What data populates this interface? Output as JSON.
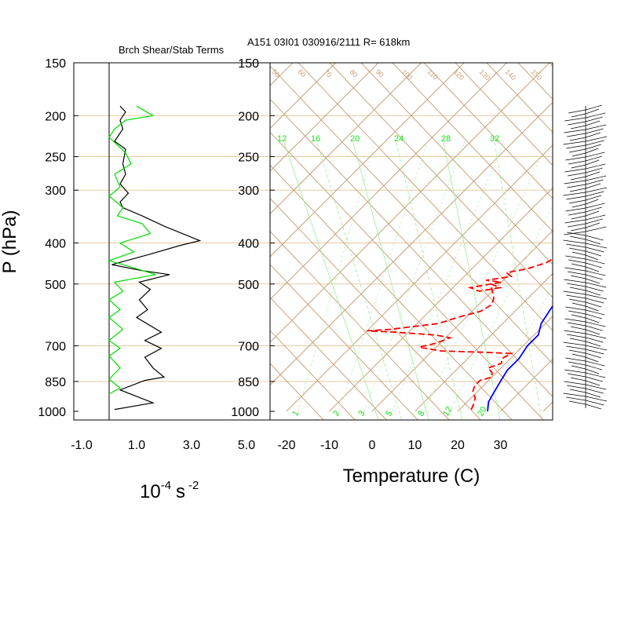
{
  "titles": {
    "left": "Brch Shear/Stab Terms",
    "right": "A151 03I01 030916/2111 R= 618km"
  },
  "labels": {
    "y": "P (hPa)",
    "x_right": "Temperature (C)",
    "x_left_base": "10",
    "x_left_exp": "-4",
    "x_left_unit": "s",
    "x_left_unit_exp": "-2"
  },
  "colors": {
    "temperature": "#0000ff",
    "dewpoint": "#ff0000",
    "shear_term": "#000000",
    "stab_term": "#00dd00",
    "skewt_lines": "#c8a27a",
    "mixing_lines": "#19e019"
  },
  "chart_data": [
    {
      "type": "line",
      "ylabel": "P (hPa)",
      "yscale": "log",
      "ylim": [
        1000,
        150
      ],
      "xlim": [
        -1.0,
        5.0
      ],
      "x_ticks": [
        "-1.0",
        "1.0",
        "3.0",
        "5.0"
      ],
      "y_ticks": [
        "150",
        "200",
        "250",
        "300",
        "400",
        "500",
        "700",
        "850",
        "1000"
      ],
      "y_tick_values": [
        150,
        200,
        250,
        300,
        400,
        500,
        700,
        850,
        1000
      ],
      "series": [
        {
          "points": [
            [
              0.4,
              190
            ],
            [
              0.6,
              196
            ],
            [
              0.4,
              205
            ],
            [
              0.5,
              215
            ],
            [
              0.2,
              230
            ],
            [
              0.6,
              240
            ],
            [
              0.5,
              260
            ],
            [
              0.6,
              275
            ],
            [
              0.4,
              290
            ],
            [
              0.7,
              305
            ],
            [
              0.4,
              320
            ],
            [
              0.5,
              330
            ],
            [
              1.2,
              345
            ],
            [
              2.0,
              365
            ],
            [
              3.3,
              395
            ],
            [
              2.6,
              405
            ],
            [
              1.5,
              425
            ],
            [
              0.1,
              450
            ],
            [
              1.2,
              465
            ],
            [
              2.2,
              475
            ],
            [
              1.1,
              495
            ],
            [
              1.5,
              515
            ],
            [
              1.1,
              545
            ],
            [
              1.4,
              575
            ],
            [
              1.0,
              600
            ],
            [
              1.9,
              650
            ],
            [
              1.3,
              680
            ],
            [
              1.9,
              710
            ],
            [
              1.3,
              745
            ],
            [
              1.6,
              790
            ],
            [
              2.0,
              830
            ],
            [
              1.3,
              845
            ],
            [
              0.4,
              890
            ],
            [
              1.6,
              955
            ],
            [
              0.2,
              990
            ]
          ]
        },
        {
          "points": [
            [
              1.0,
              190
            ],
            [
              1.6,
              200
            ],
            [
              0.6,
              205
            ],
            [
              0.2,
              215
            ],
            [
              0.0,
              225
            ],
            [
              0.6,
              245
            ],
            [
              0.8,
              260
            ],
            [
              0.2,
              275
            ],
            [
              0.4,
              295
            ],
            [
              0.0,
              310
            ],
            [
              0.5,
              330
            ],
            [
              0.3,
              345
            ],
            [
              1.2,
              360
            ],
            [
              1.5,
              380
            ],
            [
              0.4,
              400
            ],
            [
              0.9,
              420
            ],
            [
              0.0,
              440
            ],
            [
              1.0,
              460
            ],
            [
              1.7,
              475
            ],
            [
              0.2,
              495
            ],
            [
              0.5,
              520
            ],
            [
              0.0,
              545
            ],
            [
              0.4,
              575
            ],
            [
              0.0,
              600
            ],
            [
              0.5,
              640
            ],
            [
              0.0,
              680
            ],
            [
              0.4,
              710
            ],
            [
              0.0,
              740
            ],
            [
              0.4,
              790
            ],
            [
              0.0,
              840
            ],
            [
              0.4,
              880
            ],
            [
              0.0,
              910
            ]
          ]
        }
      ]
    },
    {
      "type": "line",
      "xlabel": "Temperature (C)",
      "yscale": "log",
      "ylim": [
        1000,
        150
      ],
      "xlim": [
        -23,
        41
      ],
      "x_ticks": [
        "-20",
        "-10",
        "0",
        "10",
        "20",
        "30"
      ],
      "x_tick_values": [
        -20,
        -10,
        0,
        10,
        20,
        30
      ],
      "y_ticks": [
        "150",
        "200",
        "250",
        "300",
        "400",
        "500",
        "700",
        "850",
        "1000"
      ],
      "grid": true,
      "mixing_ratio_labels": [
        "12",
        "16",
        "20",
        "24",
        "28",
        "32"
      ],
      "mixing_ratio_bottom_labels": [
        "1",
        "2",
        "3",
        "5",
        "8",
        "12",
        "20"
      ],
      "isotherm_labels": [
        "50",
        "60",
        "70",
        "80",
        "90",
        "100",
        "110",
        "120",
        "130",
        "140",
        "150"
      ],
      "series": [
        {
          "points": [
            [
              -2.5,
              180
            ],
            [
              0,
              200
            ],
            [
              3,
              220
            ],
            [
              5,
              240
            ],
            [
              7,
              260
            ],
            [
              9,
              285
            ],
            [
              10,
              300
            ],
            [
              11,
              320
            ],
            [
              12,
              340
            ],
            [
              13,
              360
            ],
            [
              13,
              380
            ],
            [
              12,
              395
            ],
            [
              12,
              410
            ],
            [
              13,
              430
            ],
            [
              14,
              450
            ],
            [
              15,
              475
            ],
            [
              16,
              500
            ],
            [
              17,
              540
            ],
            [
              18,
              580
            ],
            [
              19,
              620
            ],
            [
              21,
              660
            ],
            [
              21,
              700
            ],
            [
              22,
              750
            ],
            [
              22,
              800
            ],
            [
              23,
              850
            ],
            [
              24,
              900
            ],
            [
              25,
              950
            ],
            [
              27,
              1000
            ]
          ]
        },
        {
          "points": [
            [
              -10,
              205
            ],
            [
              -8,
              215
            ],
            [
              -4,
              230
            ],
            [
              0,
              250
            ],
            [
              2,
              265
            ],
            [
              4,
              285
            ],
            [
              5,
              300
            ],
            [
              6,
              315
            ],
            [
              7,
              335
            ],
            [
              7,
              350
            ],
            [
              8,
              360
            ],
            [
              8,
              380
            ],
            [
              7,
              395
            ],
            [
              7,
              410
            ],
            [
              7,
              430
            ],
            [
              6,
              445
            ],
            [
              3,
              460
            ],
            [
              -1,
              470
            ],
            [
              1,
              480
            ],
            [
              -4,
              490
            ],
            [
              0,
              495
            ],
            [
              -2,
              500
            ],
            [
              -6,
              510
            ],
            [
              -3,
              520
            ],
            [
              1,
              510
            ],
            [
              -2,
              500
            ],
            [
              2,
              540
            ],
            [
              3,
              560
            ],
            [
              2,
              580
            ],
            [
              -2,
              600
            ],
            [
              -5,
              620
            ],
            [
              -15,
              640
            ],
            [
              -20,
              645
            ],
            [
              -13,
              650
            ],
            [
              -3,
              660
            ],
            [
              1,
              670
            ],
            [
              -1,
              690
            ],
            [
              -4,
              705
            ],
            [
              2,
              720
            ],
            [
              12,
              725
            ],
            [
              19,
              730
            ],
            [
              18,
              750
            ],
            [
              19,
              770
            ],
            [
              17,
              790
            ],
            [
              19,
              810
            ],
            [
              20,
              830
            ],
            [
              18,
              845
            ],
            [
              18,
              870
            ],
            [
              19,
              900
            ],
            [
              21,
              930
            ],
            [
              22,
              960
            ],
            [
              23,
              1000
            ]
          ]
        }
      ]
    }
  ]
}
